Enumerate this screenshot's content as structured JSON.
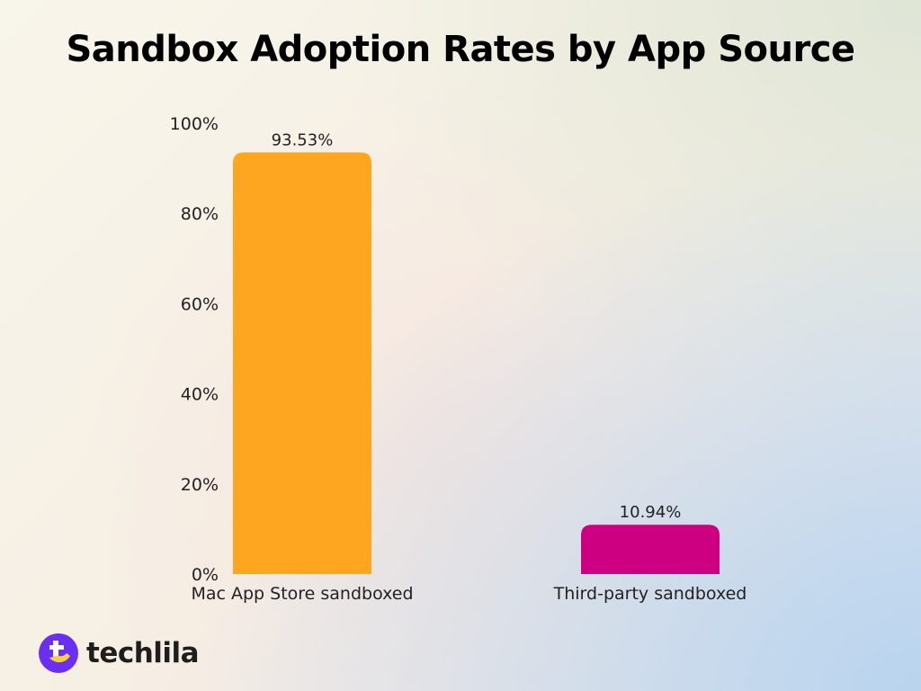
{
  "chart_data": {
    "type": "bar",
    "title": "Sandbox Adoption Rates by App Source",
    "categories": [
      "Mac App Store sandboxed",
      "Third-party sandboxed"
    ],
    "values": [
      93.53,
      10.94
    ],
    "data_labels": [
      "93.53%",
      "10.94%"
    ],
    "colors": [
      "#ffa621",
      "#cc0080"
    ],
    "ylim": [
      0,
      100
    ],
    "yticks": [
      0,
      20,
      40,
      60,
      80,
      100
    ],
    "ytick_labels": [
      "0%",
      "20%",
      "40%",
      "60%",
      "80%",
      "100%"
    ],
    "xlabel": "",
    "ylabel": "",
    "grid": false
  },
  "brand": {
    "name": "techlila",
    "colors": {
      "primary": "#6a2ff0",
      "accent": "#f7d13a"
    }
  }
}
